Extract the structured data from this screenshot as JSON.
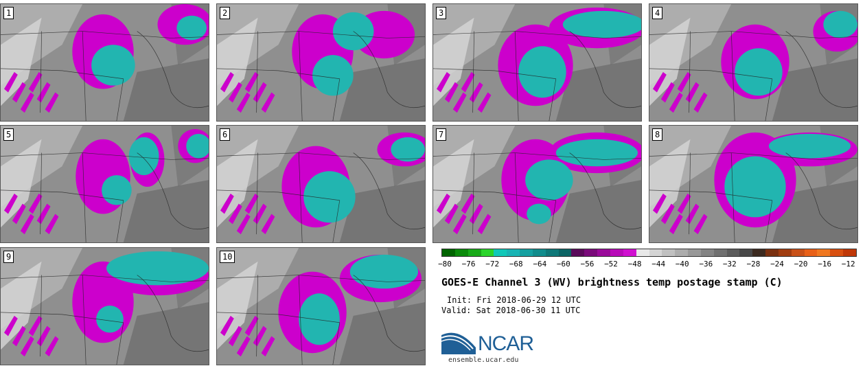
{
  "title": "GOES-E Channel 3 (WV) brightness temp postage stamp (C)",
  "init": "Init: Fri 2018-06-29 12 UTC",
  "valid": "Valid: Sat 2018-06-30 11 UTC",
  "logo_text": "NCAR",
  "url": "ensemble.ucar.edu",
  "members": [
    "1",
    "2",
    "3",
    "4",
    "5",
    "6",
    "7",
    "8",
    "9",
    "10"
  ],
  "colorbar": {
    "min": -80,
    "max": -10,
    "tick_labels": [
      "−80",
      "−76",
      "−72",
      "−68",
      "−64",
      "−60",
      "−56",
      "−52",
      "−48",
      "−44",
      "−40",
      "−36",
      "−32",
      "−28",
      "−24",
      "−20",
      "−16",
      "−12"
    ],
    "colors": [
      "#006400",
      "#0a8a0a",
      "#18aa18",
      "#2ad42a",
      "#10c8b8",
      "#18b4b4",
      "#14a0a0",
      "#108c8c",
      "#0e7878",
      "#0b6464",
      "#5a0a5a",
      "#7a0a7a",
      "#9a0a9a",
      "#b80ab8",
      "#d010d0",
      "#e8e8e8",
      "#d4d4d4",
      "#c0c0c0",
      "#acacac",
      "#989898",
      "#848484",
      "#707070",
      "#5c5c5c",
      "#484848",
      "#3c2a20",
      "#7a3010",
      "#a03c10",
      "#c85018",
      "#e86018",
      "#f07820",
      "#d85010",
      "#c03808"
    ]
  },
  "map_colors": {
    "background": "#8f8f8f",
    "light": "#d6d6d6",
    "mid": "#b0b0b0",
    "dark": "#6a6a6a",
    "moist": "#cc00cc",
    "cold_top": "#22b5b0",
    "border_line": "#222222"
  }
}
